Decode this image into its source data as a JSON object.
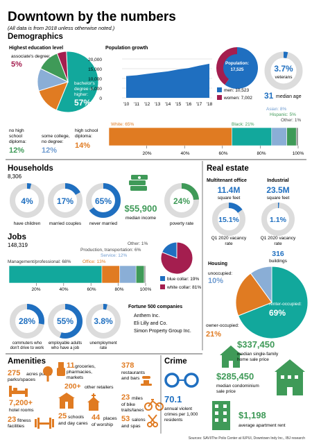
{
  "header": {
    "title": "Downtown by the numbers",
    "subtitle": "(All data is from 2018 unless otherwise noted.)"
  },
  "demographics": {
    "heading": "Demographics",
    "education": {
      "title": "Highest education level",
      "slices": [
        {
          "label_lines": [
            "bachelor's",
            "degree or",
            "higher:"
          ],
          "value": 57
        },
        {
          "label_lines": [
            "high school",
            "diploma:"
          ],
          "value": 14
        },
        {
          "label_lines": [
            "some college,",
            "no degree:"
          ],
          "value": 12
        },
        {
          "label_lines": [
            "no high",
            "school",
            "diploma:"
          ],
          "value": 12
        },
        {
          "label_lines": [
            "associate's degree:"
          ],
          "value": 5
        }
      ],
      "colors": [
        "#12a89c",
        "#e07b22",
        "#8aaed6",
        "#3f9a58",
        "#a41e4f"
      ]
    },
    "population_growth": {
      "title": "Population growth",
      "y_ticks": [
        "20,000",
        "15,000",
        "10,000",
        "5,000",
        "0"
      ],
      "x_ticks": [
        "'10",
        "'11",
        "'12",
        "'13",
        "'14",
        "'15",
        "'16",
        "'17",
        "'18"
      ]
    },
    "population": {
      "label": "Population:",
      "value": "17,525",
      "men": "men: 10,523",
      "women": "women: 7,002"
    },
    "veterans": {
      "value": "3.7%",
      "label": "veterans"
    },
    "median_age": {
      "value": "31",
      "label": "median age"
    },
    "race": {
      "labels": [
        "White: 65%",
        "Black: 21%",
        "Asian: 8%",
        "Hispanic: 5%",
        "Other: 1%"
      ],
      "x_ticks": [
        "20%",
        "40%",
        "60%",
        "80%",
        "100%"
      ]
    }
  },
  "households": {
    "heading": "Households",
    "count": "8,306",
    "items": [
      {
        "value": "4%",
        "label": "have children"
      },
      {
        "value": "17%",
        "label": "married couples"
      },
      {
        "value": "65%",
        "label": "never married"
      },
      {
        "value": "$55,900",
        "label": "median income"
      },
      {
        "value": "24%",
        "label": "poverty rate"
      }
    ]
  },
  "jobs": {
    "heading": "Jobs",
    "count": "148,319",
    "labels": {
      "management": "Management/professional: 68%",
      "office": "Office: 13%",
      "service": "Service: 12%",
      "production": "Production, transportation: 6%",
      "other": "Other: 1%"
    },
    "x_ticks": [
      "20%",
      "40%",
      "60%",
      "80%",
      "100%"
    ],
    "collar": {
      "blue": "blue collar: 19%",
      "white": "white collar: 81%"
    },
    "commuting": [
      {
        "value": "28%",
        "label_lines": [
          "commuters who",
          "don't drive to work"
        ]
      },
      {
        "value": "55%",
        "label_lines": [
          "employable adults",
          "who have a job"
        ]
      },
      {
        "value": "3.8%",
        "label_lines": [
          "unemployment",
          "rate"
        ]
      }
    ],
    "fortune": {
      "title": "Fortune 500 companies",
      "items": [
        "Anthem Inc.",
        "Eli Lilly and Co.",
        "Simon Property Group Inc."
      ]
    }
  },
  "real_estate": {
    "heading": "Real estate",
    "multitenant": {
      "title": "Multitenant office",
      "value": "11.4M",
      "unit": "square feet",
      "vacancy": "15.1%",
      "vacancy_label": [
        "Q1 2020 vacancy",
        "rate"
      ]
    },
    "industrial": {
      "title": "Industrial",
      "value": "23.5M",
      "unit": "square feet",
      "vacancy": "1.1%",
      "vacancy_label": [
        "Q1 2020 vacancy",
        "rate"
      ],
      "buildings": "316",
      "buildings_label": "buildings"
    },
    "housing": {
      "title": "Housing",
      "unoccupied_label": "unoccupied:",
      "unoccupied_value": "10%",
      "renter_label": "renter-occupied:",
      "renter_value": "69%",
      "owner_label": "owner-occupied:",
      "owner_value": "21%"
    },
    "prices": [
      {
        "value": "$337,450",
        "label_lines": [
          "median single-family",
          "home sale price"
        ]
      },
      {
        "value": "$285,450",
        "label_lines": [
          "median condominium",
          "sale price"
        ]
      },
      {
        "value": "$1,198",
        "label_lines": [
          "average apartment rent"
        ]
      }
    ]
  },
  "amenities": {
    "heading": "Amenities",
    "parks": {
      "value": "275",
      "text_lines": [
        "acres public",
        "parks/spaces"
      ]
    },
    "groceries": {
      "value": "11",
      "text_lines": [
        "groceries,",
        "pharmacies,",
        "markets"
      ]
    },
    "restaurants": {
      "value": "378",
      "text_lines": [
        "restaurants",
        "and bars"
      ]
    },
    "retailers": {
      "value": "200+",
      "text_lines": [
        "other retailers"
      ]
    },
    "hotel": {
      "value": "7,200+",
      "text_lines": [
        "hotel rooms"
      ]
    },
    "bike": {
      "value": "23",
      "text_lines": [
        "miles",
        "of bike",
        "trails/lanes"
      ]
    },
    "fitness": {
      "value": "23",
      "text_lines": [
        "fitness",
        "facilities"
      ]
    },
    "schools": {
      "value": "25",
      "text_lines": [
        "schools",
        "and day cares"
      ]
    },
    "worship": {
      "value": "44",
      "text_lines": [
        "places",
        "of worship"
      ]
    },
    "salons": {
      "value": "53",
      "text_lines": [
        "salons",
        "and spas"
      ]
    }
  },
  "crime": {
    "heading": "Crime",
    "value": "70.1",
    "label_lines": [
      "annual violent",
      "crimes per 1,000",
      "residents"
    ]
  },
  "footer": {
    "sources": "Sources: SAVI/The Polis Center at IUPUI, Downtown Indy Inc., IBJ research"
  },
  "colors": {
    "blue": "#1f6fc0",
    "teal": "#12a89c",
    "orange": "#e07b22",
    "green": "#3f9a58",
    "magenta": "#a41e4f",
    "lightblue": "#8aaed6",
    "ring_gray": "#dcdcdc"
  },
  "chart_data": [
    {
      "type": "pie",
      "title": "Highest education level",
      "categories": [
        "bachelor's degree or higher",
        "high school diploma",
        "some college, no degree",
        "no high school diploma",
        "associate's degree"
      ],
      "values": [
        57,
        14,
        12,
        12,
        5
      ]
    },
    {
      "type": "area",
      "title": "Population growth",
      "x": [
        "'10",
        "'11",
        "'12",
        "'13",
        "'14",
        "'15",
        "'16",
        "'17",
        "'18"
      ],
      "values": [
        11200,
        11600,
        12300,
        13000,
        13600,
        14600,
        15300,
        16500,
        17525
      ],
      "ylim": [
        0,
        20000
      ]
    },
    {
      "type": "pie",
      "title": "",
      "categories": [
        "men",
        "women"
      ],
      "values": [
        10523,
        7002
      ]
    },
    {
      "type": "bar",
      "title": "",
      "categories": [
        "White",
        "Black",
        "Asian",
        "Hispanic",
        "Other"
      ],
      "values": [
        65,
        21,
        8,
        5,
        1
      ]
    },
    {
      "type": "bar",
      "title": "",
      "categories": [
        "Management/professional",
        "Office",
        "Service",
        "Production, transportation",
        "Other"
      ],
      "values": [
        68,
        13,
        12,
        6,
        1
      ]
    },
    {
      "type": "pie",
      "title": "",
      "categories": [
        "blue collar",
        "white collar"
      ],
      "values": [
        19,
        81
      ]
    },
    {
      "type": "pie",
      "title": "Housing",
      "categories": [
        "renter-occupied",
        "owner-occupied",
        "unoccupied"
      ],
      "values": [
        69,
        21,
        10
      ]
    },
    {
      "type": "pie",
      "title": "",
      "categories": [
        "veterans",
        "have children",
        "married couples",
        "never married",
        "poverty rate",
        "commuters who don't drive to work",
        "employable adults who have a job",
        "unemployment rate",
        "multitenant office vacancy",
        "industrial vacancy"
      ],
      "values": [
        3.7,
        4,
        17,
        65,
        24,
        28,
        55,
        3.8,
        15.1,
        1.1
      ]
    }
  ]
}
